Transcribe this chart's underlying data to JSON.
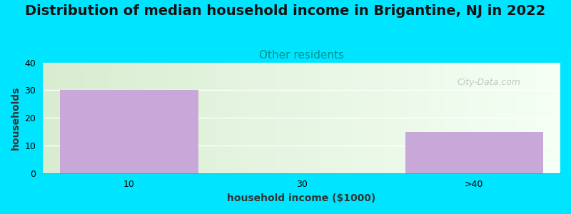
{
  "title": "Distribution of median household income in Brigantine, NJ in 2022",
  "subtitle": "Other residents",
  "xlabel": "household income ($1000)",
  "ylabel": "households",
  "categories": [
    "10",
    "30",
    ">40"
  ],
  "values": [
    30,
    0,
    15
  ],
  "bar_color": "#c8a8d8",
  "bar_width": 0.8,
  "ylim": [
    0,
    40
  ],
  "yticks": [
    0,
    10,
    20,
    30,
    40
  ],
  "background_color": "#00e5ff",
  "plot_bg_color_left": "#d8ecd0",
  "plot_bg_color_right": "#f5fff5",
  "title_fontsize": 14,
  "subtitle_color": "#009090",
  "subtitle_fontsize": 11,
  "axis_label_fontsize": 10,
  "watermark": "City-Data.com"
}
